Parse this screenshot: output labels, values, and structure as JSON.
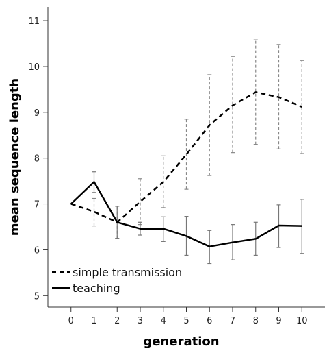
{
  "chart_data": {
    "type": "line",
    "xlabel": "generation",
    "ylabel": "mean sequence length",
    "x": [
      0,
      1,
      2,
      3,
      4,
      5,
      6,
      7,
      8,
      9,
      10
    ],
    "xlim": [
      -1,
      11
    ],
    "ylim": [
      4.75,
      11.3
    ],
    "x_ticks": [
      "0",
      "1",
      "2",
      "3",
      "4",
      "5",
      "6",
      "7",
      "8",
      "9",
      "10"
    ],
    "y_ticks": [
      "5",
      "6",
      "7",
      "8",
      "9",
      "10",
      "11"
    ],
    "grid": false,
    "legend_position": "bottom-left",
    "series": [
      {
        "name": "simple transmission",
        "line_style": "dashed",
        "error_bar_style": "dashed",
        "values": [
          7.0,
          6.83,
          6.6,
          7.05,
          7.48,
          8.08,
          8.72,
          9.15,
          9.44,
          9.33,
          9.12
        ],
        "error_low": [
          7.0,
          6.52,
          6.25,
          6.55,
          6.92,
          7.32,
          7.62,
          8.12,
          8.3,
          8.2,
          8.1
        ],
        "error_high": [
          7.0,
          7.12,
          6.95,
          7.55,
          8.05,
          8.85,
          9.82,
          10.22,
          10.58,
          10.48,
          10.13
        ]
      },
      {
        "name": "teaching",
        "line_style": "solid",
        "error_bar_style": "solid",
        "values": [
          7.0,
          7.48,
          6.6,
          6.46,
          6.46,
          6.3,
          6.07,
          6.16,
          6.24,
          6.53,
          6.52
        ],
        "error_low": [
          7.0,
          7.25,
          6.25,
          6.32,
          6.18,
          5.88,
          5.7,
          5.78,
          5.88,
          6.05,
          5.92
        ],
        "error_high": [
          7.0,
          7.7,
          6.95,
          6.6,
          6.72,
          6.73,
          6.42,
          6.55,
          6.6,
          6.98,
          7.1
        ]
      }
    ]
  }
}
